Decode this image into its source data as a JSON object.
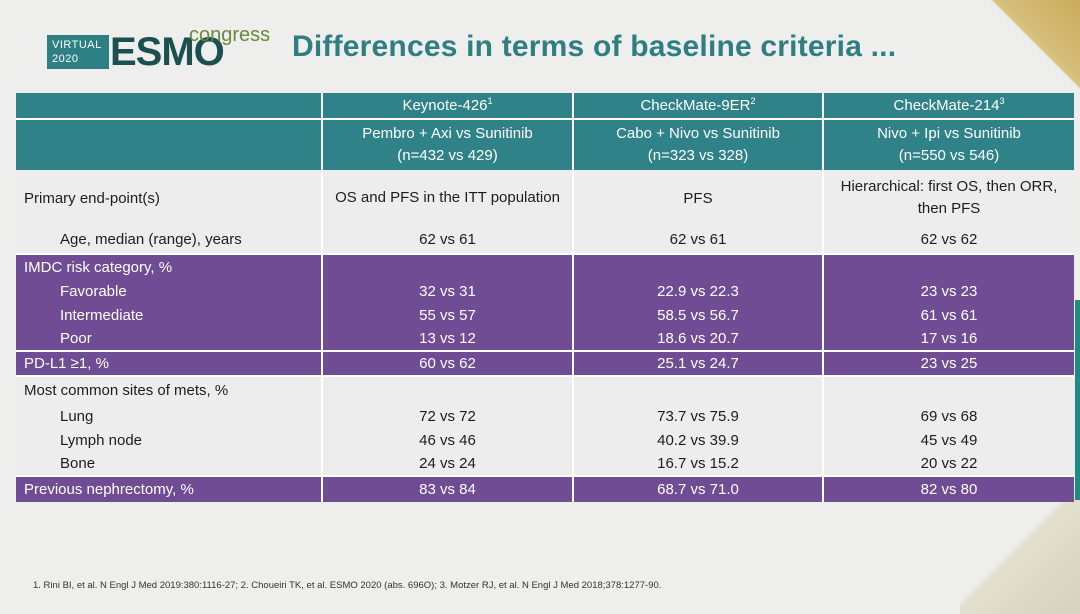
{
  "logo": {
    "virtual_line1": "VIRTUAL",
    "virtual_line2": "2020",
    "brand": "ESMO",
    "congress": "congress"
  },
  "title": "Differences in terms of baseline criteria ...",
  "studies": [
    {
      "name": "Keynote-426",
      "ref": "1",
      "arms": "Pembro + Axi vs Sunitinib",
      "n": "(n=432 vs 429)"
    },
    {
      "name": "CheckMate-9ER",
      "ref": "2",
      "arms": "Cabo + Nivo vs Sunitinib",
      "n": "(n=323 vs 328)"
    },
    {
      "name": "CheckMate-214",
      "ref": "3",
      "arms": "Nivo + Ipi vs Sunitinib",
      "n": "(n=550 vs 546)"
    }
  ],
  "rows": {
    "primary": {
      "label": "Primary end-point(s)",
      "values": [
        "OS and PFS in the ITT population",
        "PFS",
        "Hierarchical: first OS, then ORR, then PFS"
      ]
    },
    "age": {
      "label": "Age, median (range), years",
      "values": [
        "62 vs 61",
        "62 vs 61",
        "62 vs 62"
      ]
    },
    "imdc": {
      "label": "IMDC risk category, %",
      "favorable": {
        "label": "Favorable",
        "values": [
          "32 vs 31",
          "22.9 vs 22.3",
          "23 vs 23"
        ]
      },
      "intermediate": {
        "label": "Intermediate",
        "values": [
          "55 vs 57",
          "58.5 vs 56.7",
          "61 vs 61"
        ]
      },
      "poor": {
        "label": "Poor",
        "values": [
          "13 vs 12",
          "18.6 vs 20.7",
          "17 vs 16"
        ]
      }
    },
    "pdl1": {
      "label": "PD-L1 ≥1, %",
      "values": [
        "60 vs 62",
        "25.1 vs 24.7",
        "23 vs 25"
      ]
    },
    "mets": {
      "label": "Most common sites of mets, %",
      "lung": {
        "label": "Lung",
        "values": [
          "72 vs 72",
          "73.7 vs 75.9",
          "69 vs 68"
        ]
      },
      "lymph": {
        "label": "Lymph node",
        "values": [
          "46 vs 46",
          "40.2 vs 39.9",
          "45 vs 49"
        ]
      },
      "bone": {
        "label": "Bone",
        "values": [
          "24 vs 24",
          "16.7 vs 15.2",
          "20 vs 22"
        ]
      }
    },
    "nephrectomy": {
      "label": "Previous nephrectomy, %",
      "values": [
        "83 vs 84",
        "68.7 vs 71.0",
        "82 vs 80"
      ]
    }
  },
  "footnote": "1. Rini BI, et al. N Engl J Med 2019:380:1116-27; 2. Choueiri TK, et al. ESMO 2020 (abs. 696O); 3. Motzer RJ, et al. N Engl J Med 2018;378:1277-90.",
  "colors": {
    "teal": "#2f8288",
    "purple": "#6f4c93",
    "title": "#2e7e82",
    "light_row": "#ededee"
  }
}
